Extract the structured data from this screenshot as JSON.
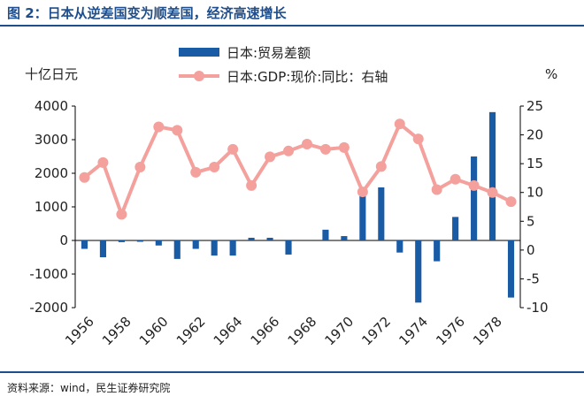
{
  "header": {
    "title": "图 2：日本从逆差国变为顺差国，经济高速增长"
  },
  "footer": {
    "source": "资料来源：wind，民生证券研究院"
  },
  "colors": {
    "bar": "#1a5ba6",
    "line": "#f4a09c",
    "brand": "#1f4e8c"
  },
  "chart_data": {
    "type": "bar",
    "left_axis_unit": "十亿日元",
    "right_axis_unit": "%",
    "legend_position": "top",
    "grid": false,
    "x": [
      1956,
      1957,
      1958,
      1959,
      1960,
      1961,
      1962,
      1963,
      1964,
      1965,
      1966,
      1967,
      1968,
      1969,
      1970,
      1971,
      1972,
      1973,
      1974,
      1975,
      1976,
      1977,
      1978,
      1979
    ],
    "x_tick_labels": [
      "1956",
      "1958",
      "1960",
      "1962",
      "1964",
      "1966",
      "1968",
      "1970",
      "1972",
      "1974",
      "1976",
      "1978"
    ],
    "ylim_left": [
      -2000,
      4000
    ],
    "yticks_left": [
      "4000",
      "3000",
      "2000",
      "1000",
      "0",
      "-1000",
      "-2000"
    ],
    "ylim_right": [
      -10,
      25
    ],
    "yticks_right": [
      "25",
      "20",
      "15",
      "10",
      "5",
      "0",
      "-5",
      "-10"
    ],
    "series": [
      {
        "name": "日本:贸易差额",
        "type": "bar",
        "axis": "left",
        "values": [
          -250,
          -500,
          -50,
          -40,
          -150,
          -550,
          -250,
          -450,
          -450,
          80,
          80,
          -420,
          0,
          320,
          130,
          1350,
          1580,
          -360,
          -1850,
          -620,
          700,
          2500,
          3820,
          -1700
        ]
      },
      {
        "name": "日本:GDP:现价:同比：右轴",
        "type": "line",
        "axis": "right",
        "values": [
          12.6,
          15.2,
          6.2,
          14.4,
          21.4,
          20.8,
          13.5,
          14.4,
          17.5,
          11.2,
          16.2,
          17.2,
          18.4,
          17.5,
          17.8,
          10.1,
          14.5,
          21.9,
          19.3,
          10.5,
          12.3,
          11.2,
          10.0,
          8.4
        ]
      }
    ]
  }
}
